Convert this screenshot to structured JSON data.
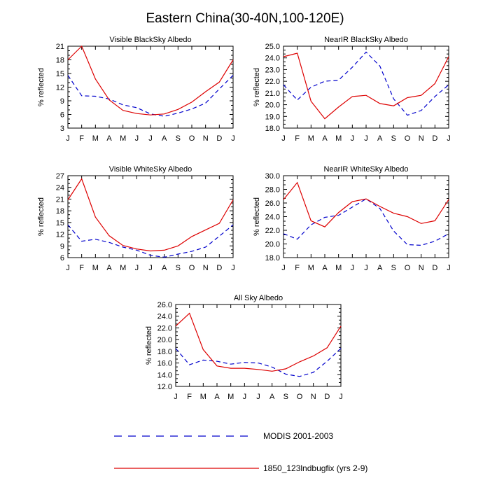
{
  "page": {
    "title": "Eastern China(30-40N,100-120E)"
  },
  "legend": {
    "modis_label": "MODIS 2001-2003",
    "model_label": "1850_123lndbugfix (yrs 2-9)",
    "modis_color": "#0000cc",
    "model_color": "#dd0000"
  },
  "chart_data": [
    {
      "type": "line",
      "title": "Visible BlackSky Albedo",
      "ylabel": "% reflected",
      "categories": [
        "J",
        "F",
        "M",
        "A",
        "M",
        "J",
        "J",
        "A",
        "S",
        "O",
        "N",
        "D",
        "J"
      ],
      "ylim": [
        3,
        21
      ],
      "yticks": [
        "3",
        "6",
        "9",
        "12",
        "15",
        "18",
        "21"
      ],
      "series": [
        {
          "name": "MODIS 2001-2003",
          "values": [
            14.6,
            10.1,
            10.0,
            9.4,
            8.1,
            7.5,
            6.1,
            5.6,
            6.3,
            7.2,
            8.5,
            11.6,
            14.6
          ]
        },
        {
          "name": "1850_123lndbugfix (yrs 2-9)",
          "values": [
            18.0,
            21.0,
            13.8,
            9.2,
            6.9,
            6.2,
            5.9,
            6.1,
            7.1,
            8.7,
            11.0,
            13.1,
            18.0
          ]
        }
      ]
    },
    {
      "type": "line",
      "title": "NearIR BlackSky Albedo",
      "ylabel": "% reflected",
      "categories": [
        "J",
        "F",
        "M",
        "A",
        "M",
        "J",
        "J",
        "A",
        "S",
        "O",
        "N",
        "D",
        "J"
      ],
      "ylim": [
        18,
        25
      ],
      "yticks": [
        "18.0",
        "19.0",
        "20.0",
        "21.0",
        "22.0",
        "23.0",
        "24.0",
        "25.0"
      ],
      "series": [
        {
          "name": "MODIS 2001-2003",
          "values": [
            21.7,
            20.4,
            21.5,
            22.0,
            22.1,
            23.2,
            24.5,
            23.3,
            20.5,
            19.1,
            19.5,
            20.7,
            21.7
          ]
        },
        {
          "name": "1850_123lndbugfix (yrs 2-9)",
          "values": [
            24.1,
            24.4,
            20.3,
            18.8,
            19.8,
            20.7,
            20.8,
            20.1,
            19.9,
            20.6,
            20.8,
            21.8,
            24.1
          ]
        }
      ]
    },
    {
      "type": "line",
      "title": "Visible WhiteSky Albedo",
      "ylabel": "% reflected",
      "categories": [
        "J",
        "F",
        "M",
        "A",
        "M",
        "J",
        "J",
        "A",
        "S",
        "O",
        "N",
        "D",
        "J"
      ],
      "ylim": [
        6,
        27
      ],
      "yticks": [
        "6",
        "9",
        "12",
        "15",
        "18",
        "21",
        "24",
        "27"
      ],
      "series": [
        {
          "name": "MODIS 2001-2003",
          "values": [
            14.4,
            10.2,
            10.7,
            9.9,
            8.7,
            7.9,
            6.6,
            6.1,
            6.9,
            7.6,
            8.7,
            11.5,
            14.4
          ]
        },
        {
          "name": "1850_123lndbugfix (yrs 2-9)",
          "values": [
            20.8,
            26.2,
            16.4,
            11.6,
            9.1,
            8.2,
            7.7,
            7.9,
            9.0,
            11.4,
            13.1,
            14.8,
            20.8
          ]
        }
      ]
    },
    {
      "type": "line",
      "title": "NearIR WhiteSky Albedo",
      "ylabel": "% reflected",
      "categories": [
        "J",
        "F",
        "M",
        "A",
        "M",
        "J",
        "J",
        "A",
        "S",
        "O",
        "N",
        "D",
        "J"
      ],
      "ylim": [
        18,
        30
      ],
      "yticks": [
        "18.0",
        "20.0",
        "22.0",
        "24.0",
        "26.0",
        "28.0",
        "30.0"
      ],
      "series": [
        {
          "name": "MODIS 2001-2003",
          "values": [
            21.5,
            20.7,
            22.8,
            23.9,
            24.2,
            25.4,
            26.6,
            25.2,
            21.9,
            19.9,
            19.8,
            20.4,
            21.5
          ]
        },
        {
          "name": "1850_123lndbugfix (yrs 2-9)",
          "values": [
            26.5,
            29.0,
            23.4,
            22.5,
            24.6,
            26.2,
            26.6,
            25.5,
            24.5,
            24.0,
            23.0,
            23.4,
            26.5
          ]
        }
      ]
    },
    {
      "type": "line",
      "title": "All Sky Albedo",
      "ylabel": "% reflected",
      "categories": [
        "J",
        "F",
        "M",
        "A",
        "M",
        "J",
        "J",
        "A",
        "S",
        "O",
        "N",
        "D",
        "J"
      ],
      "ylim": [
        12,
        26
      ],
      "yticks": [
        "12.0",
        "14.0",
        "16.0",
        "18.0",
        "20.0",
        "22.0",
        "24.0",
        "26.0"
      ],
      "series": [
        {
          "name": "MODIS 2001-2003",
          "values": [
            18.5,
            15.7,
            16.5,
            16.3,
            15.8,
            16.1,
            16.0,
            15.3,
            14.1,
            13.7,
            14.4,
            16.3,
            18.5
          ]
        },
        {
          "name": "1850_123lndbugfix (yrs 2-9)",
          "values": [
            22.3,
            24.5,
            18.3,
            15.5,
            15.1,
            15.1,
            14.9,
            14.6,
            15.0,
            16.2,
            17.2,
            18.6,
            22.3
          ]
        }
      ]
    }
  ]
}
